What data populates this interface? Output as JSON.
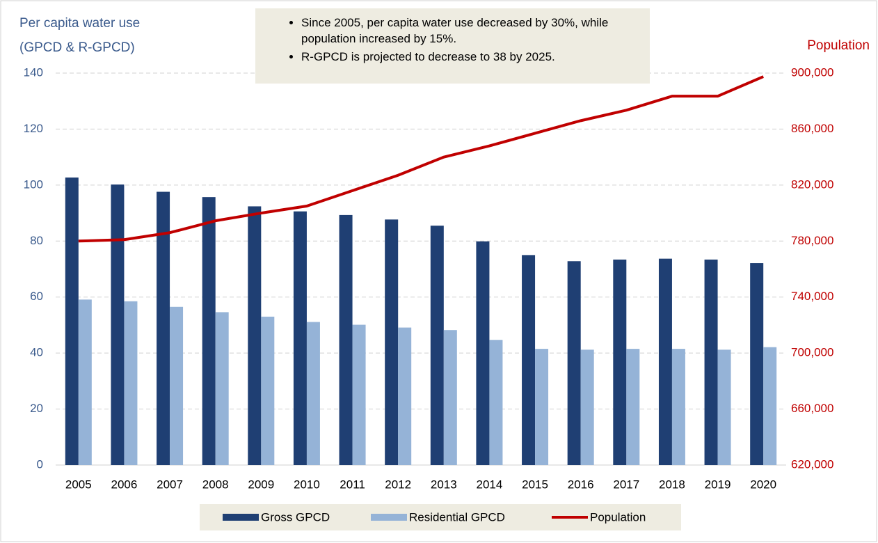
{
  "chart_data": {
    "type": "bar",
    "y_label": [
      "Per capita water use",
      "(GPCD & R-GPCD)"
    ],
    "y2_label": "Population",
    "annotations": [
      "Since 2005, per capita water use decreased by 30%, while population increased by 15%.",
      "R-GPCD is projected to decrease to 38 by 2025."
    ],
    "categories": [
      "2005",
      "2006",
      "2007",
      "2008",
      "2009",
      "2010",
      "2011",
      "2012",
      "2013",
      "2014",
      "2015",
      "2016",
      "2017",
      "2018",
      "2019",
      "2020"
    ],
    "series": [
      {
        "name": "Gross GPCD",
        "color": "#1f3f73",
        "values": [
          102.7,
          100.2,
          97.6,
          95.7,
          92.4,
          90.6,
          89.3,
          87.7,
          85.5,
          79.9,
          75.0,
          72.8,
          73.4,
          73.7,
          73.4,
          72.1
        ]
      },
      {
        "name": "Residential GPCD",
        "color": "#95b3d7",
        "values": [
          59.1,
          58.5,
          56.5,
          54.6,
          53.0,
          51.1,
          50.1,
          49.1,
          48.2,
          44.7,
          41.5,
          41.2,
          41.5,
          41.5,
          41.2,
          42.1
        ]
      },
      {
        "name": "Population",
        "color": "#c00000",
        "type": "line",
        "axis": "y2",
        "values": [
          780000,
          781000,
          786000,
          794500,
          800000,
          805000,
          816000,
          827000,
          840000,
          848000,
          857000,
          866000,
          873500,
          883500,
          883500,
          897500
        ]
      }
    ],
    "ylim": [
      0,
      140
    ],
    "yticks": [
      0,
      20,
      40,
      60,
      80,
      100,
      120,
      140
    ],
    "y2lim": [
      620000,
      900000
    ],
    "y2ticks": [
      {
        "value": 620000,
        "label": "620,000"
      },
      {
        "value": 660000,
        "label": "660,000"
      },
      {
        "value": 700000,
        "label": "700,000"
      },
      {
        "value": 740000,
        "label": "740,000"
      },
      {
        "value": 780000,
        "label": "780,000"
      },
      {
        "value": 820000,
        "label": "820,000"
      },
      {
        "value": 860000,
        "label": "860,000"
      },
      {
        "value": 900000,
        "label": "900,000"
      }
    ],
    "grid": true
  }
}
